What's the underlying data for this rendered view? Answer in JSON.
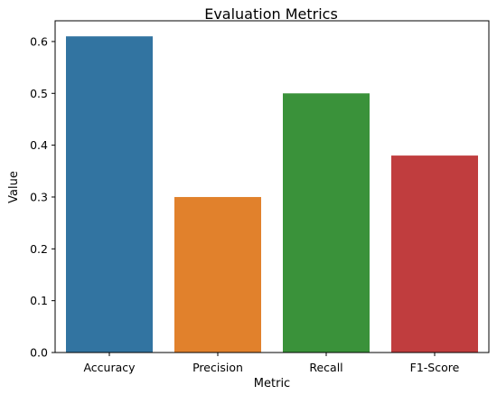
{
  "chart_data": {
    "type": "bar",
    "title": "Evaluation Metrics",
    "xlabel": "Metric",
    "ylabel": "Value",
    "categories": [
      "Accuracy",
      "Precision",
      "Recall",
      "F1-Score"
    ],
    "values": [
      0.61,
      0.3,
      0.5,
      0.38
    ],
    "colors": [
      "#3274a1",
      "#e1812c",
      "#3a923a",
      "#c03d3e"
    ],
    "ylim": [
      0,
      0.64
    ],
    "yticks": [
      "0.0",
      "0.1",
      "0.2",
      "0.3",
      "0.4",
      "0.5",
      "0.6"
    ],
    "grid": false,
    "legend": "none"
  }
}
